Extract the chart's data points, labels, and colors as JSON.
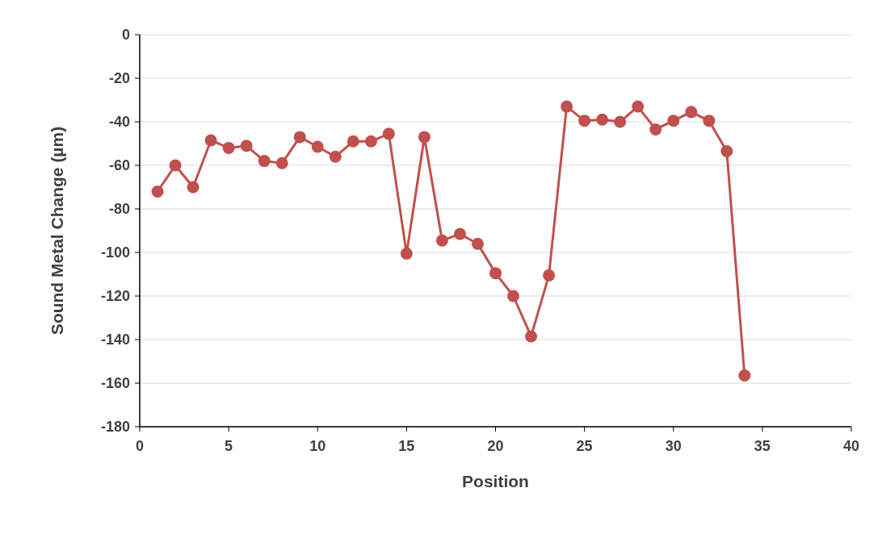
{
  "chart_data": {
    "type": "line",
    "xlabel": "Position",
    "ylabel": "Sound Metal Change (µm)",
    "x": [
      1,
      2,
      3,
      4,
      5,
      6,
      7,
      8,
      9,
      10,
      11,
      12,
      13,
      14,
      15,
      16,
      17,
      18,
      19,
      20,
      21,
      22,
      23,
      24,
      25,
      26,
      27,
      28,
      29,
      30,
      31,
      32,
      33,
      34
    ],
    "series": [
      {
        "color": "#c0504d",
        "values": [
          -72,
          -60,
          -70,
          -48.5,
          -52,
          -51,
          -58,
          -59,
          -47,
          -51.5,
          -56,
          -49,
          -49,
          -45.5,
          -100.5,
          -47,
          -94.5,
          -91.5,
          -96,
          -109.5,
          -120,
          -138.5,
          -110.5,
          -33,
          -39.5,
          -39,
          -40,
          -33,
          -43.5,
          -39.5,
          -35.5,
          -39.5,
          -53.5,
          -156.5
        ]
      }
    ],
    "xlim": [
      0,
      40
    ],
    "xticks": [
      0,
      5,
      10,
      15,
      20,
      25,
      30,
      35,
      40
    ],
    "ylim": [
      -180,
      0
    ],
    "yticks": [
      -180,
      -160,
      -140,
      -120,
      -100,
      -80,
      -60,
      -40,
      -20,
      0
    ],
    "grid": "y",
    "marker": "circle",
    "line_style": "solid"
  }
}
